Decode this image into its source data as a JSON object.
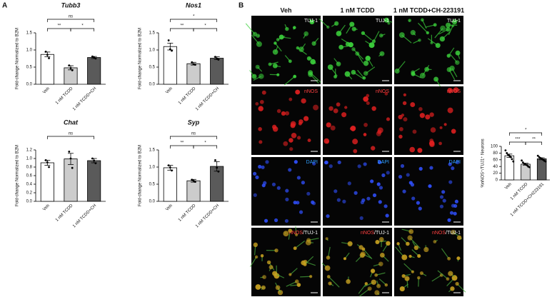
{
  "chart_data": [
    {
      "type": "bar",
      "title": "Tubb3",
      "ylabel": "Fold-change Normalized to B2M",
      "categories": [
        "Veh",
        "1 nM TCDD",
        "1 nM TCDD+CH"
      ],
      "values": [
        0.87,
        0.48,
        0.78
      ],
      "errors": [
        0.07,
        0.06,
        0.03
      ],
      "points": [
        [
          0.95,
          0.86,
          0.76
        ],
        [
          0.55,
          0.47,
          0.41
        ],
        [
          0.81,
          0.78,
          0.75
        ]
      ],
      "colors": [
        "#ffffff",
        "#cccccc",
        "#5a5a5a"
      ],
      "ylim": [
        0,
        1.5
      ],
      "yticks": [
        {
          "value": 0,
          "label": "0.0"
        },
        0.5,
        {
          "value": 1,
          "label": "1.0"
        },
        1.5
      ],
      "annotations": [
        {
          "text": "**",
          "between": [
            "Veh",
            "1 nM TCDD"
          ]
        },
        {
          "text": "*",
          "between": [
            "1 nM TCDD",
            "1 nM TCDD+CH"
          ]
        },
        {
          "text": "ns",
          "between": [
            "Veh",
            "1 nM TCDD+CH"
          ]
        }
      ]
    },
    {
      "type": "bar",
      "title": "Nos1",
      "ylabel": "Fold-change Normalized to B2M",
      "categories": [
        "Veh",
        "1 nM TCDD",
        "1 nM TCDD+CH"
      ],
      "values": [
        1.1,
        0.6,
        0.76
      ],
      "errors": [
        0.1,
        0.04,
        0.04
      ],
      "points": [
        [
          1.28,
          1.02,
          0.98
        ],
        [
          0.64,
          0.58,
          0.57
        ],
        [
          0.8,
          0.75,
          0.72
        ]
      ],
      "colors": [
        "#ffffff",
        "#cccccc",
        "#5a5a5a"
      ],
      "ylim": [
        0,
        1.5
      ],
      "yticks": [
        {
          "value": 0,
          "label": "0.0"
        },
        0.5,
        {
          "value": 1,
          "label": "1.0"
        },
        1.5
      ],
      "annotations": [
        {
          "text": "**",
          "between": [
            "Veh",
            "1 nM TCDD"
          ]
        },
        {
          "text": "*",
          "between": [
            "1 nM TCDD",
            "1 nM TCDD+CH"
          ]
        },
        {
          "text": "*",
          "between": [
            "Veh",
            "1 nM TCDD+CH"
          ]
        }
      ]
    },
    {
      "type": "bar",
      "title": "Chat",
      "ylabel": "Fold-change Normalized to B2M",
      "categories": [
        "Veh",
        "1 nM TCDD",
        "1 nM TCDD+CH"
      ],
      "values": [
        0.9,
        0.99,
        0.95
      ],
      "errors": [
        0.06,
        0.13,
        0.05
      ],
      "points": [
        [
          0.96,
          0.91,
          0.8
        ],
        [
          1.16,
          1.0,
          0.78
        ],
        [
          1.0,
          0.95,
          0.89
        ]
      ],
      "colors": [
        "#ffffff",
        "#cccccc",
        "#5a5a5a"
      ],
      "ylim": [
        0,
        1.2
      ],
      "yticks": [
        {
          "value": 0,
          "label": "0.0"
        },
        0.2,
        0.4,
        0.6,
        0.8,
        {
          "value": 1,
          "label": "1.0"
        },
        1.2
      ],
      "annotations": [
        {
          "text": "ns",
          "between": [
            "Veh",
            "1 nM TCDD+CH"
          ]
        }
      ]
    },
    {
      "type": "bar",
      "title": "Syp",
      "ylabel": "Fold-change Normalized to B2M",
      "categories": [
        "Veh",
        "1 nM TCDD",
        "1 nM TCDD+CH"
      ],
      "values": [
        0.98,
        0.6,
        1.02
      ],
      "errors": [
        0.07,
        0.04,
        0.14
      ],
      "points": [
        [
          1.05,
          0.99,
          0.9
        ],
        [
          0.63,
          0.6,
          0.57
        ],
        [
          1.2,
          0.98,
          0.87
        ]
      ],
      "colors": [
        "#ffffff",
        "#cccccc",
        "#5a5a5a"
      ],
      "ylim": [
        0,
        1.5
      ],
      "yticks": [
        {
          "value": 0,
          "label": "0.0"
        },
        0.5,
        {
          "value": 1,
          "label": "1.0"
        },
        1.5
      ],
      "annotations": [
        {
          "text": "**",
          "between": [
            "Veh",
            "1 nM TCDD"
          ]
        },
        {
          "text": "*",
          "between": [
            "1 nM TCDD",
            "1 nM TCDD+CH"
          ]
        },
        {
          "text": "ns",
          "between": [
            "Veh",
            "1 nM TCDD+CH"
          ]
        }
      ]
    },
    {
      "type": "bar",
      "ylabel": "%nNOS⁺/TUJ1⁺ Neurons",
      "categories": [
        "Veh",
        "1 nM TCDD",
        "1 nM TCDD+CH223191"
      ],
      "values": [
        72,
        47,
        63
      ],
      "errors": [
        5,
        3,
        3
      ],
      "points": [
        [
          88,
          80,
          75,
          72,
          68,
          62,
          55
        ],
        [
          58,
          52,
          48,
          46,
          44,
          40,
          38
        ],
        [
          72,
          68,
          65,
          63,
          60,
          57,
          55
        ]
      ],
      "colors": [
        "#ffffff",
        "#cccccc",
        "#5a5a5a"
      ],
      "ylim": [
        0,
        100
      ],
      "yticks": [
        0,
        20,
        40,
        60,
        80,
        100
      ],
      "annotations": [
        {
          "text": "***",
          "between": [
            "Veh",
            "1 nM TCDD"
          ]
        },
        {
          "text": "**",
          "between": [
            "1 nM TCDD",
            "1 nM TCDD+CH223191"
          ]
        },
        {
          "text": "*",
          "between": [
            "Veh",
            "1 nM TCDD+CH223191"
          ]
        }
      ]
    }
  ],
  "panels": {
    "a": "A",
    "b": "B"
  },
  "micrographs": {
    "columns": [
      "Veh",
      "1 nM TCDD",
      "1 nM TCDD+CH-223191"
    ],
    "rows": [
      {
        "tint": "#3cd23c",
        "labels": [
          [
            {
              "text": "TUJ-1",
              "color": "#ffffff"
            }
          ],
          [
            {
              "text": "TUJ-1",
              "color": "#ffffff"
            }
          ],
          [
            {
              "text": "TUJ-1",
              "color": "#ffffff"
            }
          ]
        ]
      },
      {
        "tint": "#e02020",
        "labels": [
          [
            {
              "text": "nNOS",
              "color": "#ff4040"
            }
          ],
          [
            {
              "text": "nNOS",
              "color": "#ff4040"
            }
          ],
          [
            {
              "text": "nNOS",
              "color": "#ff4040"
            }
          ]
        ]
      },
      {
        "tint": "#3050ff",
        "labels": [
          [
            {
              "text": "DAPI",
              "color": "#30a0ff"
            }
          ],
          [
            {
              "text": "DAPI",
              "color": "#30a0ff"
            }
          ],
          [
            {
              "text": "DAPI",
              "color": "#30a0ff"
            }
          ]
        ]
      },
      {
        "tint": "#c8a020",
        "labels": [
          [
            {
              "text": "nNOS",
              "color": "#ff4040"
            },
            {
              "text": "/TUJ-1",
              "color": "#ffffff"
            }
          ],
          [
            {
              "text": "nNOS",
              "color": "#ff4040"
            },
            {
              "text": "/TUJ-1",
              "color": "#ffffff"
            }
          ],
          [
            {
              "text": "nNOS",
              "color": "#ff4040"
            },
            {
              "text": "/TUJ-1",
              "color": "#ffffff"
            }
          ]
        ]
      }
    ]
  }
}
